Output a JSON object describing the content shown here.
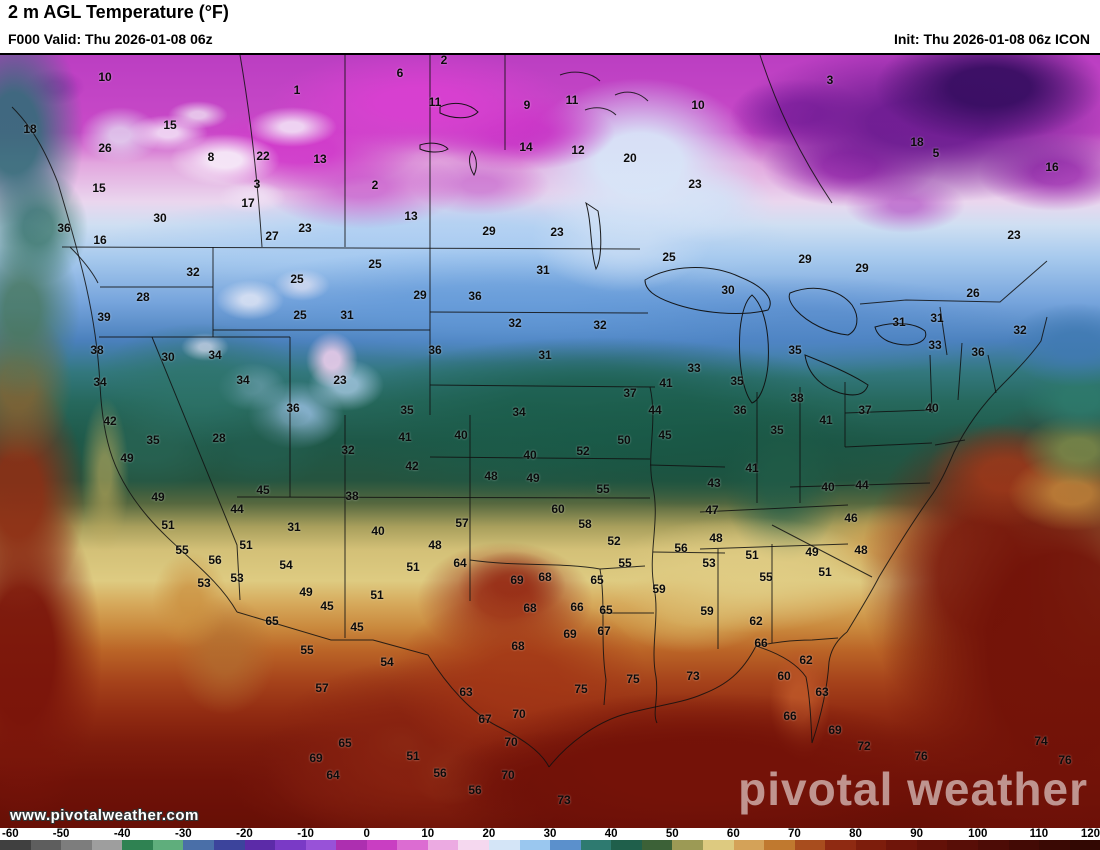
{
  "header": {
    "title": "2 m AGL Temperature (°F)",
    "valid": "F000 Valid: Thu 2026-01-08 06z",
    "init": "Init: Thu 2026-01-08 06z ICON"
  },
  "watermark": {
    "url": "www.pivotalweather.com",
    "logo": "pivotal weather"
  },
  "colorbar": {
    "units": "°F",
    "min": -60,
    "max": 120,
    "ticks": [
      -60,
      -50,
      -40,
      -30,
      -20,
      -10,
      0,
      10,
      20,
      30,
      40,
      50,
      60,
      70,
      80,
      90,
      100,
      110,
      120
    ],
    "segments": [
      "#404040",
      "#5e5e5e",
      "#7d7d7d",
      "#9e9e9e",
      "#2f8252",
      "#5fae7c",
      "#4a6fa8",
      "#3c449c",
      "#5c2ba8",
      "#7a3ac6",
      "#9852d8",
      "#ad2fb0",
      "#c93ec2",
      "#dc6cd2",
      "#ecaae2",
      "#f5d8ef",
      "#d4e5f7",
      "#9ac7ef",
      "#5b90cc",
      "#2e7a70",
      "#1f5f4b",
      "#3c6137",
      "#9c9a55",
      "#ddca80",
      "#d4a258",
      "#c0792f",
      "#a84d1e",
      "#8f2a12",
      "#7d1d0c",
      "#6f150a",
      "#631108",
      "#580e07",
      "#4d0c06",
      "#430a05",
      "#3a0904",
      "#320803"
    ]
  },
  "map": {
    "parameter": "2 m AGL Temperature",
    "units": "°F",
    "stations_format": "[tempF, x, y]",
    "stations": [
      [
        10,
        105,
        77
      ],
      [
        1,
        297,
        90
      ],
      [
        6,
        400,
        73
      ],
      [
        2,
        444,
        60
      ],
      [
        11,
        435,
        102
      ],
      [
        9,
        527,
        105
      ],
      [
        11,
        572,
        100
      ],
      [
        10,
        698,
        105
      ],
      [
        3,
        830,
        80
      ],
      [
        18,
        30,
        129
      ],
      [
        15,
        170,
        125
      ],
      [
        26,
        105,
        148
      ],
      [
        8,
        211,
        157
      ],
      [
        22,
        263,
        156
      ],
      [
        13,
        320,
        159
      ],
      [
        14,
        526,
        147
      ],
      [
        12,
        578,
        150
      ],
      [
        20,
        630,
        158
      ],
      [
        18,
        917,
        142
      ],
      [
        5,
        936,
        153
      ],
      [
        16,
        1052,
        167
      ],
      [
        15,
        99,
        188
      ],
      [
        3,
        257,
        184
      ],
      [
        2,
        375,
        185
      ],
      [
        17,
        248,
        203
      ],
      [
        23,
        695,
        184
      ],
      [
        30,
        160,
        218
      ],
      [
        13,
        411,
        216
      ],
      [
        36,
        64,
        228
      ],
      [
        16,
        100,
        240
      ],
      [
        23,
        305,
        228
      ],
      [
        27,
        272,
        236
      ],
      [
        29,
        489,
        231
      ],
      [
        23,
        557,
        232
      ],
      [
        23,
        1014,
        235
      ],
      [
        25,
        669,
        257
      ],
      [
        29,
        805,
        259
      ],
      [
        29,
        862,
        268
      ],
      [
        32,
        193,
        272
      ],
      [
        25,
        375,
        264
      ],
      [
        31,
        543,
        270
      ],
      [
        25,
        297,
        279
      ],
      [
        30,
        728,
        290
      ],
      [
        28,
        143,
        297
      ],
      [
        29,
        420,
        295
      ],
      [
        36,
        475,
        296
      ],
      [
        26,
        973,
        293
      ],
      [
        39,
        104,
        317
      ],
      [
        25,
        300,
        315
      ],
      [
        31,
        347,
        315
      ],
      [
        32,
        515,
        323
      ],
      [
        32,
        600,
        325
      ],
      [
        31,
        899,
        322
      ],
      [
        31,
        937,
        318
      ],
      [
        32,
        1020,
        330
      ],
      [
        38,
        97,
        350
      ],
      [
        30,
        168,
        357
      ],
      [
        34,
        215,
        355
      ],
      [
        36,
        435,
        350
      ],
      [
        31,
        545,
        355
      ],
      [
        33,
        694,
        368
      ],
      [
        35,
        795,
        350
      ],
      [
        33,
        935,
        345
      ],
      [
        36,
        978,
        352
      ],
      [
        34,
        100,
        382
      ],
      [
        34,
        243,
        380
      ],
      [
        23,
        340,
        380
      ],
      [
        37,
        630,
        393
      ],
      [
        41,
        666,
        383
      ],
      [
        35,
        737,
        381
      ],
      [
        38,
        797,
        398
      ],
      [
        37,
        865,
        410
      ],
      [
        42,
        110,
        421
      ],
      [
        35,
        153,
        440
      ],
      [
        28,
        219,
        438
      ],
      [
        36,
        293,
        408
      ],
      [
        32,
        348,
        450
      ],
      [
        41,
        405,
        437
      ],
      [
        40,
        461,
        435
      ],
      [
        34,
        519,
        412
      ],
      [
        35,
        407,
        410
      ],
      [
        44,
        655,
        410
      ],
      [
        36,
        740,
        410
      ],
      [
        41,
        826,
        420
      ],
      [
        35,
        777,
        430
      ],
      [
        40,
        932,
        408
      ],
      [
        49,
        127,
        458
      ],
      [
        42,
        412,
        466
      ],
      [
        40,
        530,
        455
      ],
      [
        50,
        624,
        440
      ],
      [
        45,
        665,
        435
      ],
      [
        52,
        583,
        451
      ],
      [
        41,
        752,
        468
      ],
      [
        48,
        491,
        476
      ],
      [
        49,
        533,
        478
      ],
      [
        45,
        263,
        490
      ],
      [
        44,
        237,
        509
      ],
      [
        38,
        352,
        496
      ],
      [
        55,
        603,
        489
      ],
      [
        43,
        714,
        483
      ],
      [
        40,
        828,
        487
      ],
      [
        44,
        862,
        485
      ],
      [
        49,
        158,
        497
      ],
      [
        31,
        294,
        527
      ],
      [
        40,
        378,
        531
      ],
      [
        57,
        462,
        523
      ],
      [
        60,
        558,
        509
      ],
      [
        58,
        585,
        524
      ],
      [
        47,
        712,
        510
      ],
      [
        48,
        716,
        538
      ],
      [
        46,
        851,
        518
      ],
      [
        51,
        168,
        525
      ],
      [
        51,
        246,
        545
      ],
      [
        48,
        435,
        545
      ],
      [
        52,
        614,
        541
      ],
      [
        53,
        709,
        563
      ],
      [
        51,
        752,
        555
      ],
      [
        49,
        812,
        552
      ],
      [
        48,
        861,
        550
      ],
      [
        55,
        182,
        550
      ],
      [
        56,
        215,
        560
      ],
      [
        54,
        286,
        565
      ],
      [
        64,
        460,
        563
      ],
      [
        55,
        625,
        563
      ],
      [
        56,
        681,
        548
      ],
      [
        51,
        825,
        572
      ],
      [
        55,
        766,
        577
      ],
      [
        53,
        204,
        583
      ],
      [
        53,
        237,
        578
      ],
      [
        51,
        413,
        567
      ],
      [
        69,
        517,
        580
      ],
      [
        65,
        597,
        580
      ],
      [
        59,
        659,
        589
      ],
      [
        49,
        306,
        592
      ],
      [
        45,
        327,
        606
      ],
      [
        51,
        377,
        595
      ],
      [
        68,
        545,
        577
      ],
      [
        65,
        272,
        621
      ],
      [
        45,
        357,
        627
      ],
      [
        66,
        577,
        607
      ],
      [
        65,
        606,
        610
      ],
      [
        59,
        707,
        611
      ],
      [
        68,
        530,
        608
      ],
      [
        62,
        756,
        621
      ],
      [
        55,
        307,
        650
      ],
      [
        54,
        387,
        662
      ],
      [
        67,
        604,
        631
      ],
      [
        69,
        570,
        634
      ],
      [
        66,
        761,
        643
      ],
      [
        62,
        806,
        660
      ],
      [
        68,
        518,
        646
      ],
      [
        57,
        322,
        688
      ],
      [
        63,
        466,
        692
      ],
      [
        60,
        784,
        676
      ],
      [
        63,
        822,
        692
      ],
      [
        75,
        581,
        689
      ],
      [
        75,
        633,
        679
      ],
      [
        73,
        693,
        676
      ],
      [
        67,
        485,
        719
      ],
      [
        70,
        519,
        714
      ],
      [
        66,
        790,
        716
      ],
      [
        69,
        835,
        730
      ],
      [
        70,
        511,
        742
      ],
      [
        72,
        864,
        746
      ],
      [
        65,
        345,
        743
      ],
      [
        69,
        316,
        758
      ],
      [
        51,
        413,
        756
      ],
      [
        76,
        921,
        756
      ],
      [
        74,
        1041,
        741
      ],
      [
        64,
        333,
        775
      ],
      [
        56,
        440,
        773
      ],
      [
        70,
        508,
        775
      ],
      [
        76,
        1065,
        760
      ],
      [
        56,
        475,
        790
      ],
      [
        73,
        564,
        800
      ]
    ]
  }
}
